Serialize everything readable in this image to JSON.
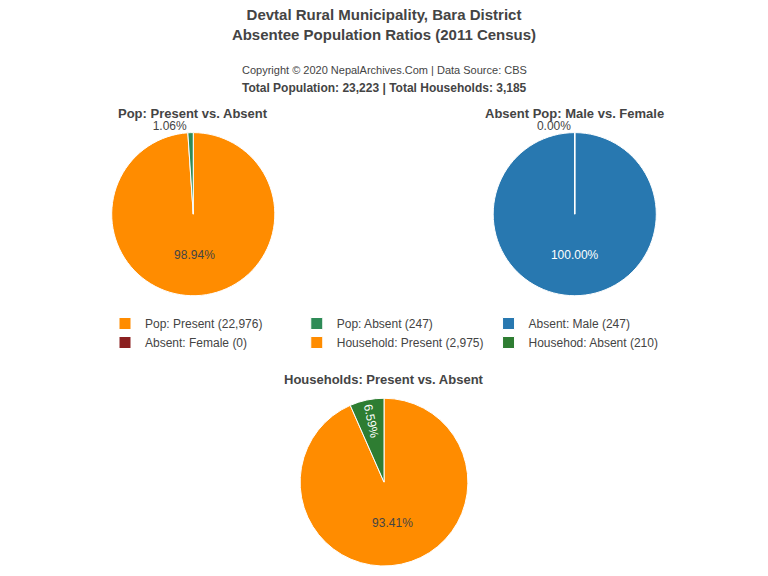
{
  "title": "Devtal Rural Municipality, Bara District\nAbsentee Population Ratios (2011 Census)",
  "subtitle": "Copyright © 2020 NepalArchives.Com | Data Source: CBS",
  "annotations": [
    "Total Population: 23,223 | Total Households: 3,185"
  ],
  "chart_data": [
    {
      "type": "pie",
      "title": "Pop: Present vs. Absent",
      "categories": [
        "Pop: Present (22,976)",
        "Pop: Absent (247)"
      ],
      "values": [
        98.94,
        1.06
      ],
      "value_labels": [
        "98.94%",
        "1.06%"
      ],
      "colors": [
        "#FF8C00",
        "#2E8B57"
      ],
      "data_labels": true
    },
    {
      "type": "pie",
      "title": "Absent Pop: Male vs. Female",
      "categories": [
        "Absent: Male (247)",
        "Absent: Female (0)"
      ],
      "values": [
        99.999,
        0.001
      ],
      "value_labels": [
        "100.00%",
        "0.00%"
      ],
      "colors": [
        "#2878b0",
        "#8B2020"
      ],
      "data_labels": true
    },
    {
      "type": "pie",
      "title": "Households: Present vs. Absent",
      "categories": [
        "Household: Present (2,975)",
        "Househod: Absent (210)"
      ],
      "values": [
        93.41,
        6.59
      ],
      "value_labels": [
        "93.41%",
        "6.59%"
      ],
      "colors": [
        "#FF8C00",
        "#2E7D32"
      ],
      "data_labels": true
    }
  ]
}
